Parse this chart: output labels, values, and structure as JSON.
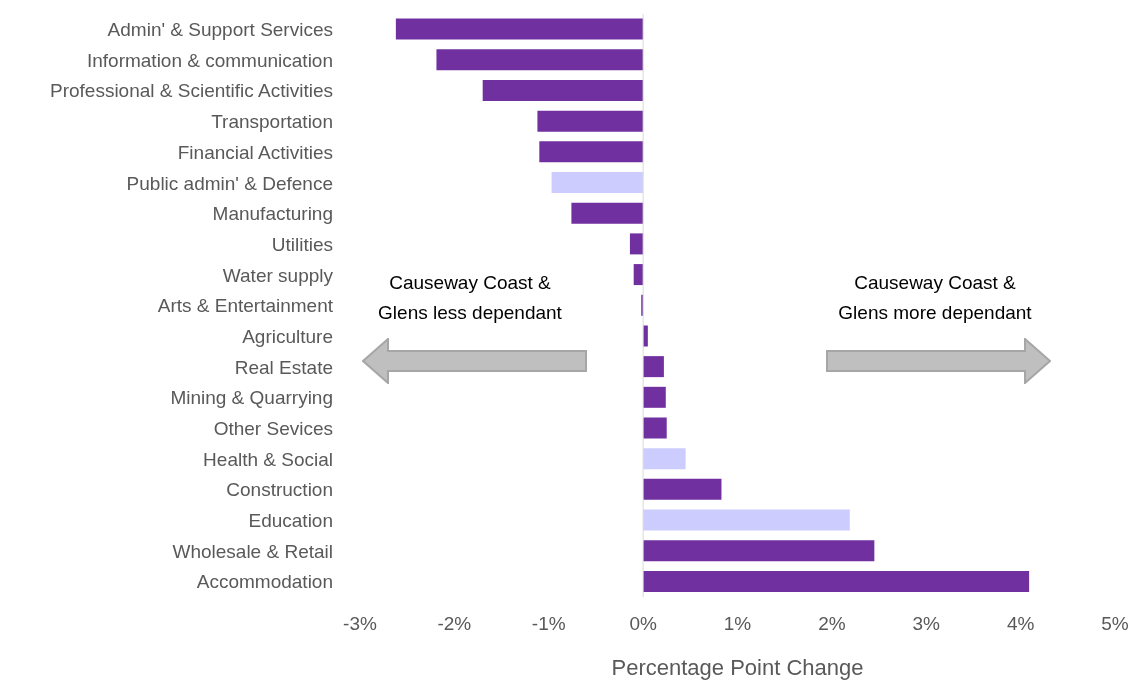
{
  "chart_data": {
    "type": "bar",
    "orientation": "horizontal",
    "xlabel": "Percentage Point Change",
    "categories": [
      "Admin' & Support Services",
      "Information & communication",
      "Professional & Scientific Activities",
      "Transportation",
      "Financial Activities",
      "Public admin' & Defence",
      "Manufacturing",
      "Utilities",
      "Water supply",
      "Arts & Entertainment",
      "Agriculture",
      "Real Estate",
      "Mining & Quarrying",
      "Other Sevices",
      "Health & Social",
      "Construction",
      "Education",
      "Wholesale & Retail",
      "Accommodation"
    ],
    "values": [
      -2.62,
      -2.19,
      -1.7,
      -1.12,
      -1.1,
      -0.97,
      -0.76,
      -0.14,
      -0.1,
      -0.02,
      0.05,
      0.22,
      0.24,
      0.25,
      0.45,
      0.83,
      2.19,
      2.45,
      4.09
    ],
    "colors": [
      "#7030a0",
      "#7030a0",
      "#7030a0",
      "#7030a0",
      "#7030a0",
      "#ccccff",
      "#7030a0",
      "#7030a0",
      "#7030a0",
      "#7030a0",
      "#7030a0",
      "#7030a0",
      "#7030a0",
      "#7030a0",
      "#ccccff",
      "#7030a0",
      "#ccccff",
      "#7030a0",
      "#7030a0"
    ],
    "xlim": [
      -3,
      5
    ],
    "xticks": [
      {
        "value": -3,
        "label": "-3%"
      },
      {
        "value": -2,
        "label": "-2%"
      },
      {
        "value": -1,
        "label": "-1%"
      },
      {
        "value": 0,
        "label": "0%"
      },
      {
        "value": 1,
        "label": "1%"
      },
      {
        "value": 2,
        "label": "2%"
      },
      {
        "value": 3,
        "label": "3%"
      },
      {
        "value": 4,
        "label": "4%"
      },
      {
        "value": 5,
        "label": "5%"
      }
    ],
    "ref_lines": [
      {
        "axis": "x",
        "value": 0,
        "color": "#d9d9d9"
      }
    ],
    "annotations": [
      "Causeway Coast & Glens less dependant",
      "Causeway Coast & Glens more dependant"
    ],
    "grid": false,
    "legend": false
  }
}
